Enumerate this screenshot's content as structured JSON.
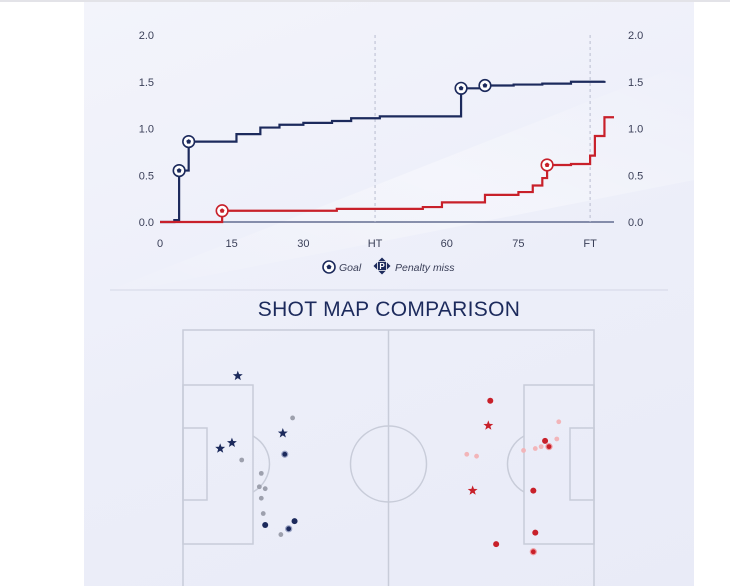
{
  "chart_data": [
    {
      "type": "line",
      "subtype": "step",
      "x_ticks": [
        "0",
        "15",
        "30",
        "HT",
        "60",
        "75",
        "FT"
      ],
      "y_ticks": [
        "0.0",
        "0.5",
        "1.0",
        "1.5",
        "2.0"
      ],
      "ylim": [
        0,
        2.0
      ],
      "xlim": [
        0,
        95
      ],
      "grid": false,
      "series": [
        {
          "color": "#1c2a5c",
          "x": [
            0,
            3,
            4,
            6,
            16,
            21,
            25,
            30,
            36,
            40,
            46,
            63,
            68,
            74,
            80,
            86,
            93
          ],
          "y": [
            0.0,
            0.02,
            0.55,
            0.86,
            0.94,
            1.01,
            1.04,
            1.06,
            1.08,
            1.11,
            1.13,
            1.43,
            1.46,
            1.47,
            1.48,
            1.5,
            1.51
          ],
          "goals_at": [
            4,
            6,
            63,
            68
          ]
        },
        {
          "color": "#c8202a",
          "x": [
            0,
            12,
            13,
            37,
            55,
            59,
            68,
            75,
            78,
            80,
            81,
            86,
            90,
            91,
            93,
            95
          ],
          "y": [
            0.0,
            0.0,
            0.12,
            0.14,
            0.16,
            0.21,
            0.29,
            0.32,
            0.39,
            0.47,
            0.61,
            0.62,
            0.71,
            0.92,
            1.12,
            1.12
          ],
          "goals_at": [
            13,
            81
          ]
        }
      ],
      "legend": [
        {
          "label": "Goal",
          "icon": "football-icon"
        },
        {
          "label": "Penalty miss",
          "icon": "penalty-miss-icon"
        }
      ]
    },
    {
      "type": "scatter",
      "title": "SHOT MAP COMPARISON",
      "pitch": {
        "length": 105,
        "width": 68
      },
      "home_shots": [
        {
          "x": 9.5,
          "y": 31,
          "kind": "goal"
        },
        {
          "x": 12.5,
          "y": 29.5,
          "kind": "goal"
        },
        {
          "x": 14,
          "y": 12,
          "kind": "goal"
        },
        {
          "x": 25.5,
          "y": 27,
          "kind": "goal"
        },
        {
          "x": 21,
          "y": 51,
          "kind": "shot"
        },
        {
          "x": 28.5,
          "y": 50,
          "kind": "shot"
        },
        {
          "x": 26,
          "y": 32.5,
          "kind": "on_target"
        },
        {
          "x": 27,
          "y": 52,
          "kind": "on_target"
        },
        {
          "x": 20.5,
          "y": 48,
          "kind": "blocked"
        },
        {
          "x": 20,
          "y": 44,
          "kind": "blocked"
        },
        {
          "x": 19.5,
          "y": 41,
          "kind": "blocked"
        },
        {
          "x": 21,
          "y": 41.5,
          "kind": "blocked"
        },
        {
          "x": 20,
          "y": 37.5,
          "kind": "blocked"
        },
        {
          "x": 15,
          "y": 34,
          "kind": "blocked"
        },
        {
          "x": 25,
          "y": 53.5,
          "kind": "blocked"
        },
        {
          "x": 28,
          "y": 23,
          "kind": "blocked"
        }
      ],
      "away_shots": [
        {
          "x": 74,
          "y": 42,
          "kind": "goal"
        },
        {
          "x": 78,
          "y": 25,
          "kind": "goal"
        },
        {
          "x": 80,
          "y": 56,
          "kind": "shot"
        },
        {
          "x": 90,
          "y": 53,
          "kind": "shot"
        },
        {
          "x": 89.5,
          "y": 42,
          "kind": "shot"
        },
        {
          "x": 92.5,
          "y": 29,
          "kind": "shot"
        },
        {
          "x": 78.5,
          "y": 18.5,
          "kind": "shot"
        },
        {
          "x": 89.5,
          "y": 58,
          "kind": "on_target"
        },
        {
          "x": 93.5,
          "y": 30.5,
          "kind": "on_target"
        },
        {
          "x": 95.5,
          "y": 28.5,
          "kind": "blocked"
        },
        {
          "x": 91.5,
          "y": 30.5,
          "kind": "blocked"
        },
        {
          "x": 90,
          "y": 31,
          "kind": "blocked"
        },
        {
          "x": 87,
          "y": 31.5,
          "kind": "blocked"
        },
        {
          "x": 72.5,
          "y": 32.5,
          "kind": "blocked"
        },
        {
          "x": 75,
          "y": 33,
          "kind": "blocked"
        },
        {
          "x": 96,
          "y": 24,
          "kind": "blocked"
        }
      ]
    }
  ]
}
